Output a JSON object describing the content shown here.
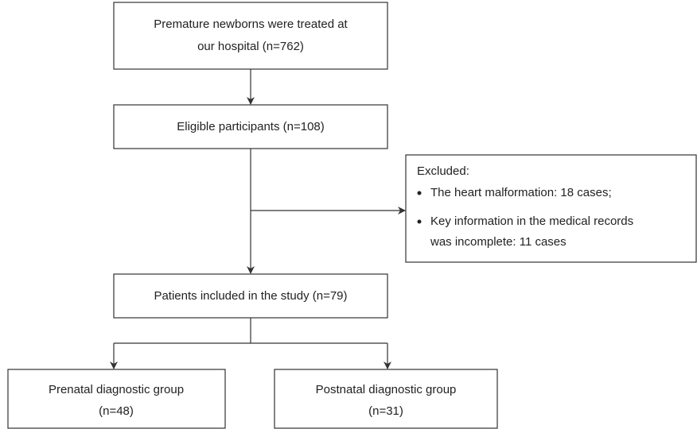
{
  "nodes": [
    {
      "lines": [
        "Premature newborns were treated at",
        "our hospital (n=762)"
      ]
    },
    {
      "lines": [
        "Eligible participants (n=108)"
      ]
    },
    {
      "lines": [
        "Patients included in the study (n=79)"
      ]
    },
    {
      "lines": [
        "Prenatal diagnostic group",
        "(n=48)"
      ]
    },
    {
      "lines": [
        "Postnatal diagnostic group",
        "(n=31)"
      ]
    }
  ],
  "excluded": {
    "title": "Excluded:",
    "items": [
      {
        "lines": [
          "The heart malformation: 18 cases;"
        ]
      },
      {
        "lines": [
          "Key information in the medical records",
          "was incomplete: 11 cases"
        ]
      }
    ]
  }
}
